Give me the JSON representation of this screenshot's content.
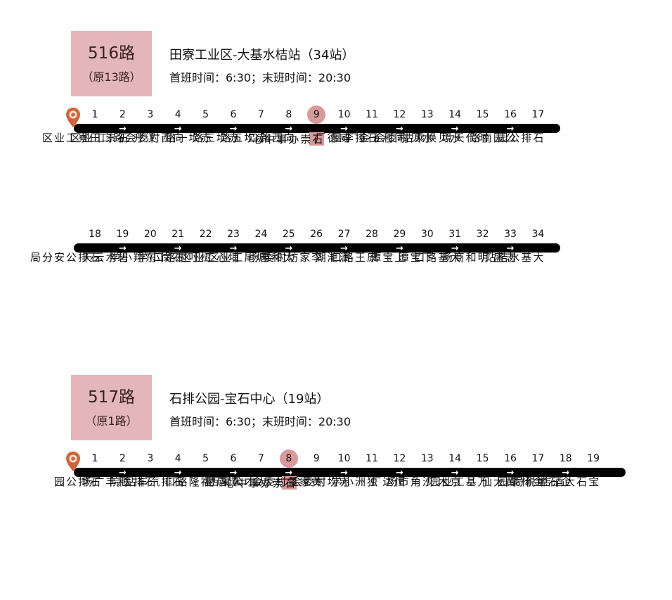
{
  "routes": [
    {
      "number": "516路",
      "original": "（原13路）",
      "title": "田寮工业区-大基水桔站（34站）",
      "schedule": "首班时间：6:30；末班时间：20:30",
      "highlight_stop": 9,
      "rows": [
        [
          {
            "n": "1",
            "name": "田寮工业区"
          },
          {
            "n": "2",
            "name": "石崇工业区"
          },
          {
            "n": "3",
            "name": "汉升厂"
          },
          {
            "n": "4",
            "name": "向西村委会路口"
          },
          {
            "n": "5",
            "name": "赤坎一路"
          },
          {
            "n": "6",
            "name": "赤坎三路"
          },
          {
            "n": "7",
            "name": "赤坎五路"
          },
          {
            "n": "8",
            "name": "向西路口"
          },
          {
            "n": "9",
            "name": "石崇办事中心"
          },
          {
            "n": "10",
            "name": "威德厂"
          },
          {
            "n": "11",
            "name": "石排李屋"
          },
          {
            "n": "12",
            "name": "同利五金厂"
          },
          {
            "n": "13",
            "name": "水贝村委会"
          },
          {
            "n": "14",
            "name": "水贝换乘站"
          },
          {
            "n": "15",
            "name": "时代天境"
          },
          {
            "n": "16",
            "name": "公园南路"
          },
          {
            "n": "17",
            "name": "石排公园"
          }
        ],
        [
          {
            "n": "18",
            "name": "石排公安分局"
          },
          {
            "n": "19",
            "name": "碧水云天"
          },
          {
            "n": "20",
            "name": "东翔小学"
          },
          {
            "n": "21",
            "name": "石岗小学"
          },
          {
            "n": "22",
            "name": "树吓村路口"
          },
          {
            "n": "23",
            "name": "埔心工业区"
          },
          {
            "n": "24",
            "name": "塘尾工业区"
          },
          {
            "n": "25",
            "name": "太和市场"
          },
          {
            "n": "26",
            "name": "李家坊村委"
          },
          {
            "n": "27",
            "name": "潇滟湖"
          },
          {
            "n": "28",
            "name": "康王路口"
          },
          {
            "n": "29",
            "name": "上宝潭"
          },
          {
            "n": "30",
            "name": "下宝潭"
          },
          {
            "n": "31",
            "name": "大基路口"
          },
          {
            "n": "32",
            "name": "明和商场"
          },
          {
            "n": "33",
            "name": "志盛厂"
          },
          {
            "n": "34",
            "name": "大基水桔站"
          }
        ]
      ]
    },
    {
      "number": "517路",
      "original": "（原1路）",
      "title": "石排公园-宝石中心（19站）",
      "schedule": "首班时间：6:30；末班时间：20:30",
      "highlight_stop": 8,
      "rows": [
        [
          {
            "n": "1",
            "name": "石排公园"
          },
          {
            "n": "2",
            "name": "利丰广场"
          },
          {
            "n": "3",
            "name": "石排医院"
          },
          {
            "n": "4",
            "name": "石排汽车站"
          },
          {
            "n": "5",
            "name": "福隆路口"
          },
          {
            "n": "6",
            "name": "谭唇村"
          },
          {
            "n": "7",
            "name": "人才公寓西"
          },
          {
            "n": "8",
            "name": "石崇办事中心"
          },
          {
            "n": "9",
            "name": "黄家垦村委会"
          },
          {
            "n": "10",
            "name": "赤坎村委会"
          },
          {
            "n": "11",
            "name": "独洲小学"
          },
          {
            "n": "12",
            "name": "恒达厂"
          },
          {
            "n": "13",
            "name": "沙角市场"
          },
          {
            "n": "14",
            "name": "京木厂"
          },
          {
            "n": "15",
            "name": "万基工业园"
          },
          {
            "n": "16",
            "name": "黄大仙"
          },
          {
            "n": "17",
            "name": "金椅豪园"
          },
          {
            "n": "18",
            "name": "企石地税局"
          },
          {
            "n": "19",
            "name": "宝石大酒店"
          }
        ]
      ]
    }
  ],
  "icons": {
    "start": "location-pin-icon",
    "direction": "right-arrow-icon"
  },
  "colors": {
    "badge": "#e3b7b9",
    "highlight": "#d99a9c",
    "bar": "#000000",
    "pin": "#d2643a"
  },
  "arrow_glyph": "→"
}
